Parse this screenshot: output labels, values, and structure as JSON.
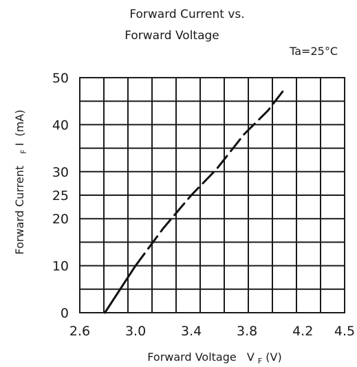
{
  "chart_data": {
    "type": "line",
    "title_lines": [
      "Forward Current vs.",
      "Forward Voltage"
    ],
    "annotation": "Ta=25°C",
    "xlabel": {
      "main": "Forward Voltage",
      "symbol": "V",
      "subscript": "F",
      "unit": "(V)"
    },
    "ylabel": {
      "main": "Forward Current",
      "symbol": "I",
      "subscript": "F",
      "unit": "(mA)"
    },
    "xlim": [
      2.6,
      4.5
    ],
    "ylim": [
      0,
      50
    ],
    "x_ticks": [
      2.6,
      3.0,
      3.4,
      3.8,
      4.2,
      4.5
    ],
    "x_tick_labels": [
      "2.6",
      "3.0",
      "3.4",
      "3.8",
      "4.2",
      "4.5"
    ],
    "y_ticks": [
      0,
      10,
      20,
      25,
      30,
      40,
      50
    ],
    "y_tick_labels": [
      "0",
      "10",
      "20",
      "25",
      "30",
      "40",
      "50"
    ],
    "grid": true,
    "series": [
      {
        "x": [
          2.78,
          3.0,
          3.2,
          3.4,
          3.58,
          3.78,
          3.95,
          4.08
        ],
        "y": [
          0,
          10,
          18,
          25,
          30.5,
          38,
          43,
          48
        ]
      }
    ],
    "colors": {
      "line": "#111111",
      "grid": "#1a1a1a",
      "text": "#1a1a1a"
    }
  }
}
